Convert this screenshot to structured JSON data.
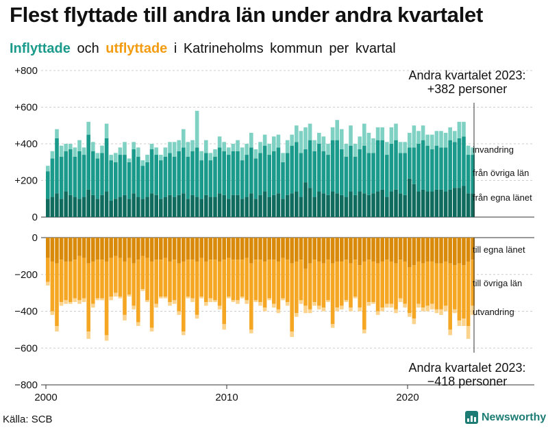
{
  "title": "Flest flyttade till andra län under andra kvartalet",
  "subtitle": {
    "in": "Inflyttade",
    "och": "och",
    "out": "utflyttade",
    "rest": "i Katrineholms kommun per kvartal"
  },
  "source": "Källa: SCB",
  "logo_text": "Newsworthy",
  "colors": {
    "in_own": "#0e6b5e",
    "in_other": "#1a9a8a",
    "in_immig": "#7fd1c4",
    "out_own": "#d98a0b",
    "out_other": "#f5a623",
    "out_emig": "#fbd38d",
    "in_label": "#1a9a8a",
    "out_label": "#f39c12"
  },
  "chart_data": {
    "type": "bar",
    "stacked": true,
    "x_start_year": 2000,
    "x_ticks": [
      "2000",
      "2010",
      "2020"
    ],
    "y_ticks_top": [
      "+800",
      "+600",
      "+400",
      "+200",
      "0"
    ],
    "y_ticks_bottom": [
      "0",
      "−200",
      "−400",
      "−600",
      "−800"
    ],
    "ylim_top": [
      0,
      800
    ],
    "ylim_bottom": [
      -800,
      0
    ],
    "series_labels_in": [
      "invandring",
      "från övriga län",
      "från egna länet"
    ],
    "series_labels_out": [
      "till egna länet",
      "till övriga län",
      "utvandring"
    ],
    "annotation_top": [
      "Andra kvartalet 2023:",
      "+382 personer"
    ],
    "annotation_bottom": [
      "Andra kvartalet 2023:",
      "−418 personer"
    ],
    "inflyttade": {
      "egna_lanet": [
        100,
        110,
        130,
        100,
        140,
        120,
        110,
        100,
        110,
        150,
        120,
        100,
        120,
        140,
        90,
        100,
        110,
        120,
        100,
        130,
        110,
        100,
        110,
        130,
        120,
        100,
        110,
        120,
        110,
        120,
        130,
        100,
        120,
        110,
        100,
        120,
        110,
        110,
        130,
        120,
        100,
        120,
        120,
        100,
        110,
        130,
        100,
        120,
        140,
        110,
        120,
        130,
        100,
        120,
        130,
        140,
        110,
        190,
        160,
        110,
        140,
        130,
        120,
        140,
        130,
        120,
        110,
        140,
        120,
        140,
        130,
        120,
        130,
        140,
        150,
        110,
        140,
        150,
        130,
        120,
        210,
        180,
        140,
        150,
        140,
        140,
        150,
        150,
        140,
        150,
        160,
        160,
        170,
        130,
        130
      ],
      "ovriga_lan": [
        150,
        210,
        300,
        230,
        220,
        250,
        220,
        260,
        230,
        300,
        240,
        220,
        230,
        290,
        220,
        200,
        230,
        220,
        200,
        240,
        220,
        180,
        190,
        240,
        220,
        210,
        220,
        230,
        220,
        240,
        250,
        230,
        240,
        270,
        210,
        230,
        200,
        220,
        250,
        240,
        240,
        240,
        240,
        210,
        230,
        250,
        220,
        230,
        250,
        230,
        240,
        250,
        200,
        230,
        260,
        270,
        240,
        180,
        260,
        250,
        260,
        230,
        220,
        280,
        290,
        250,
        220,
        250,
        210,
        230,
        260,
        230,
        220,
        280,
        270,
        230,
        260,
        270,
        220,
        230,
        170,
        200,
        260,
        270,
        250,
        230,
        240,
        230,
        240,
        270,
        250,
        270,
        270,
        210,
        210
      ],
      "invandring": [
        30,
        40,
        50,
        60,
        40,
        30,
        50,
        60,
        40,
        70,
        50,
        30,
        40,
        80,
        30,
        50,
        40,
        70,
        20,
        40,
        50,
        30,
        40,
        30,
        40,
        30,
        50,
        60,
        80,
        60,
        100,
        80,
        60,
        200,
        50,
        70,
        40,
        40,
        60,
        50,
        40,
        40,
        60,
        70,
        60,
        80,
        50,
        60,
        60,
        60,
        80,
        70,
        50,
        70,
        60,
        90,
        120,
        120,
        90,
        60,
        60,
        80,
        60,
        70,
        110,
        110,
        70,
        110,
        70,
        70,
        120,
        110,
        80,
        70,
        70,
        70,
        90,
        90,
        60,
        60,
        80,
        120,
        70,
        80,
        60,
        80,
        80,
        90,
        80,
        70,
        60,
        90,
        80,
        50,
        40
      ]
    },
    "utflyttade": {
      "egna_lanet": [
        110,
        130,
        140,
        120,
        130,
        130,
        120,
        100,
        110,
        140,
        130,
        120,
        120,
        130,
        110,
        100,
        110,
        130,
        110,
        140,
        120,
        100,
        110,
        130,
        120,
        120,
        110,
        130,
        120,
        140,
        130,
        120,
        120,
        130,
        110,
        130,
        120,
        120,
        130,
        120,
        110,
        120,
        120,
        120,
        110,
        140,
        120,
        120,
        130,
        120,
        120,
        130,
        110,
        120,
        140,
        130,
        120,
        170,
        140,
        120,
        130,
        140,
        120,
        140,
        130,
        130,
        120,
        140,
        120,
        150,
        130,
        120,
        130,
        140,
        130,
        120,
        130,
        140,
        120,
        130,
        160,
        150,
        130,
        140,
        130,
        130,
        140,
        140,
        130,
        140,
        150,
        140,
        150,
        130,
        120
      ],
      "ovriga_lan": [
        130,
        270,
        340,
        230,
        210,
        220,
        210,
        240,
        220,
        370,
        230,
        210,
        210,
        400,
        210,
        200,
        210,
        290,
        200,
        230,
        340,
        180,
        230,
        360,
        240,
        200,
        210,
        220,
        220,
        260,
        380,
        200,
        210,
        290,
        210,
        220,
        210,
        220,
        240,
        350,
        210,
        220,
        220,
        200,
        230,
        360,
        220,
        230,
        250,
        210,
        240,
        260,
        220,
        230,
        370,
        280,
        220,
        200,
        250,
        230,
        240,
        240,
        220,
        330,
        250,
        240,
        220,
        240,
        200,
        230,
        370,
        230,
        220,
        260,
        250,
        240,
        230,
        250,
        210,
        230,
        250,
        290,
        230,
        240,
        240,
        230,
        250,
        250,
        240,
        360,
        240,
        310,
        290,
        350,
        250
      ],
      "utvandring": [
        20,
        20,
        30,
        20,
        20,
        10,
        20,
        20,
        20,
        40,
        20,
        10,
        10,
        30,
        20,
        20,
        10,
        30,
        10,
        20,
        20,
        10,
        10,
        20,
        20,
        10,
        10,
        20,
        20,
        20,
        20,
        10,
        20,
        20,
        10,
        20,
        20,
        10,
        20,
        30,
        10,
        10,
        20,
        10,
        20,
        20,
        10,
        20,
        20,
        10,
        20,
        20,
        10,
        20,
        30,
        20,
        20,
        40,
        20,
        20,
        20,
        20,
        10,
        20,
        20,
        20,
        10,
        20,
        10,
        20,
        20,
        20,
        10,
        20,
        20,
        20,
        20,
        20,
        20,
        20,
        20,
        30,
        20,
        20,
        30,
        30,
        20,
        30,
        30,
        30,
        20,
        30,
        40,
        70,
        50
      ]
    }
  }
}
